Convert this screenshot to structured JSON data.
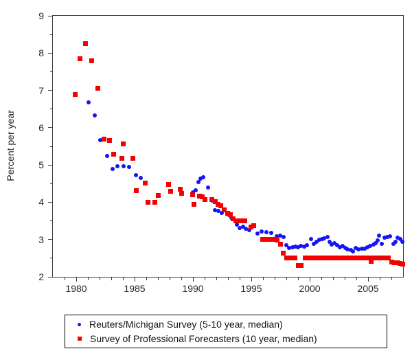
{
  "legend": {
    "items": [
      {
        "label": "Reuters/Michigan Survey (5-10 year, median)",
        "marker": "circle",
        "color": "#1414f5"
      },
      {
        "label": "Survey of Professional Forecasters (10 year, median)",
        "marker": "square",
        "color": "#f50000"
      }
    ]
  },
  "chart_data": {
    "type": "scatter",
    "title": "",
    "xlabel": "",
    "ylabel": "Percent per year",
    "xlim": [
      1978,
      2008
    ],
    "ylim": [
      2,
      9
    ],
    "x_major_ticks": [
      1980,
      1985,
      1990,
      1995,
      2000,
      2005
    ],
    "x_minor_step": 1,
    "y_major_ticks": [
      2,
      3,
      4,
      5,
      6,
      7,
      8,
      9
    ],
    "y_minor_step": 0.5,
    "grid": false,
    "legend_position": "bottom",
    "series": [
      {
        "name": "Reuters/Michigan Survey (5-10 year, median)",
        "marker": "circle",
        "color": "#1414f5",
        "points": [
          [
            1981.05,
            6.67
          ],
          [
            1981.6,
            6.33
          ],
          [
            1982.05,
            5.67
          ],
          [
            1982.65,
            5.25
          ],
          [
            1983.1,
            4.89
          ],
          [
            1983.55,
            4.97
          ],
          [
            1984.05,
            4.97
          ],
          [
            1984.55,
            4.95
          ],
          [
            1985.1,
            4.72
          ],
          [
            1985.55,
            4.65
          ],
          [
            1990.0,
            4.27
          ],
          [
            1990.25,
            4.33
          ],
          [
            1990.45,
            4.55
          ],
          [
            1990.65,
            4.63
          ],
          [
            1990.9,
            4.67
          ],
          [
            1991.3,
            4.39
          ],
          [
            1991.65,
            4.05
          ],
          [
            1991.9,
            3.78
          ],
          [
            1992.15,
            3.76
          ],
          [
            1992.45,
            3.71
          ],
          [
            1992.95,
            3.68
          ],
          [
            1993.3,
            3.58
          ],
          [
            1993.75,
            3.4
          ],
          [
            1994.0,
            3.31
          ],
          [
            1994.3,
            3.34
          ],
          [
            1994.55,
            3.29
          ],
          [
            1994.8,
            3.25
          ],
          [
            1995.5,
            3.16
          ],
          [
            1995.9,
            3.22
          ],
          [
            1996.3,
            3.2
          ],
          [
            1996.7,
            3.18
          ],
          [
            1997.2,
            3.08
          ],
          [
            1997.45,
            3.1
          ],
          [
            1997.75,
            3.07
          ],
          [
            1998.0,
            2.85
          ],
          [
            1998.25,
            2.78
          ],
          [
            1998.5,
            2.8
          ],
          [
            1998.75,
            2.81
          ],
          [
            1999.0,
            2.8
          ],
          [
            1999.25,
            2.82
          ],
          [
            1999.5,
            2.81
          ],
          [
            1999.75,
            2.84
          ],
          [
            2000.1,
            3.01
          ],
          [
            2000.35,
            2.89
          ],
          [
            2000.6,
            2.94
          ],
          [
            2000.8,
            2.99
          ],
          [
            2001.05,
            3.01
          ],
          [
            2001.25,
            3.04
          ],
          [
            2001.5,
            3.06
          ],
          [
            2001.7,
            2.94
          ],
          [
            2001.9,
            2.87
          ],
          [
            2002.1,
            2.91
          ],
          [
            2002.35,
            2.85
          ],
          [
            2002.6,
            2.79
          ],
          [
            2002.8,
            2.82
          ],
          [
            2003.05,
            2.78
          ],
          [
            2003.25,
            2.74
          ],
          [
            2003.5,
            2.71
          ],
          [
            2003.7,
            2.69
          ],
          [
            2003.95,
            2.77
          ],
          [
            2004.2,
            2.74
          ],
          [
            2004.45,
            2.76
          ],
          [
            2004.7,
            2.75
          ],
          [
            2004.95,
            2.79
          ],
          [
            2005.2,
            2.83
          ],
          [
            2005.45,
            2.87
          ],
          [
            2005.65,
            2.91
          ],
          [
            2005.8,
            2.97
          ],
          [
            2005.95,
            3.1
          ],
          [
            2006.2,
            2.89
          ],
          [
            2006.4,
            3.05
          ],
          [
            2006.65,
            3.07
          ],
          [
            2006.9,
            3.08
          ],
          [
            2007.15,
            2.89
          ],
          [
            2007.35,
            2.94
          ],
          [
            2007.55,
            3.05
          ],
          [
            2007.75,
            3.01
          ],
          [
            2007.95,
            2.94
          ]
        ]
      },
      {
        "name": "Survey of Professional Forecasters (10 year, median)",
        "marker": "square",
        "color": "#f50000",
        "points": [
          [
            1979.9,
            6.9
          ],
          [
            1980.35,
            7.85
          ],
          [
            1980.8,
            8.25
          ],
          [
            1981.3,
            7.8
          ],
          [
            1981.85,
            7.05
          ],
          [
            1982.4,
            5.7
          ],
          [
            1982.85,
            5.65
          ],
          [
            1983.2,
            5.28
          ],
          [
            1983.9,
            5.18
          ],
          [
            1984.05,
            5.56
          ],
          [
            1984.85,
            5.18
          ],
          [
            1985.15,
            4.32
          ],
          [
            1985.9,
            4.52
          ],
          [
            1986.15,
            4.0
          ],
          [
            1986.75,
            4.0
          ],
          [
            1987.05,
            4.18
          ],
          [
            1987.9,
            4.48
          ],
          [
            1988.1,
            4.29
          ],
          [
            1988.9,
            4.34
          ],
          [
            1989.05,
            4.23
          ],
          [
            1989.95,
            4.2
          ],
          [
            1990.1,
            3.95
          ],
          [
            1990.55,
            4.16
          ],
          [
            1990.8,
            4.15
          ],
          [
            1991.05,
            4.08
          ],
          [
            1991.6,
            4.07
          ],
          [
            1991.9,
            4.02
          ],
          [
            1992.15,
            3.95
          ],
          [
            1992.4,
            3.9
          ],
          [
            1992.7,
            3.8
          ],
          [
            1992.95,
            3.7
          ],
          [
            1993.2,
            3.67
          ],
          [
            1993.45,
            3.55
          ],
          [
            1993.7,
            3.5
          ],
          [
            1993.95,
            3.5
          ],
          [
            1994.2,
            3.5
          ],
          [
            1994.45,
            3.5
          ],
          [
            1994.95,
            3.33
          ],
          [
            1995.2,
            3.37
          ],
          [
            1995.95,
            3.0
          ],
          [
            1996.2,
            3.0
          ],
          [
            1996.45,
            3.0
          ],
          [
            1996.7,
            3.0
          ],
          [
            1996.95,
            3.0
          ],
          [
            1997.2,
            2.99
          ],
          [
            1997.5,
            2.88
          ],
          [
            1997.75,
            2.64
          ],
          [
            1998.0,
            2.5
          ],
          [
            1998.25,
            2.5
          ],
          [
            1998.5,
            2.5
          ],
          [
            1998.75,
            2.5
          ],
          [
            1999.0,
            2.3
          ],
          [
            1999.25,
            2.3
          ],
          [
            1999.6,
            2.5
          ],
          [
            1999.85,
            2.5
          ],
          [
            2000.1,
            2.5
          ],
          [
            2000.35,
            2.5
          ],
          [
            2000.6,
            2.5
          ],
          [
            2000.85,
            2.5
          ],
          [
            2001.1,
            2.5
          ],
          [
            2001.35,
            2.5
          ],
          [
            2001.6,
            2.5
          ],
          [
            2001.85,
            2.5
          ],
          [
            2002.1,
            2.5
          ],
          [
            2002.35,
            2.5
          ],
          [
            2002.6,
            2.5
          ],
          [
            2002.85,
            2.5
          ],
          [
            2003.1,
            2.5
          ],
          [
            2003.35,
            2.5
          ],
          [
            2003.6,
            2.5
          ],
          [
            2003.85,
            2.5
          ],
          [
            2004.1,
            2.5
          ],
          [
            2004.35,
            2.5
          ],
          [
            2004.6,
            2.5
          ],
          [
            2004.85,
            2.5
          ],
          [
            2005.1,
            2.5
          ],
          [
            2005.25,
            2.42
          ],
          [
            2005.5,
            2.5
          ],
          [
            2005.75,
            2.5
          ],
          [
            2006.0,
            2.5
          ],
          [
            2006.25,
            2.5
          ],
          [
            2006.5,
            2.5
          ],
          [
            2006.75,
            2.5
          ],
          [
            2007.0,
            2.4
          ],
          [
            2007.25,
            2.38
          ],
          [
            2007.5,
            2.37
          ],
          [
            2007.75,
            2.36
          ],
          [
            2007.95,
            2.35
          ]
        ]
      }
    ]
  }
}
